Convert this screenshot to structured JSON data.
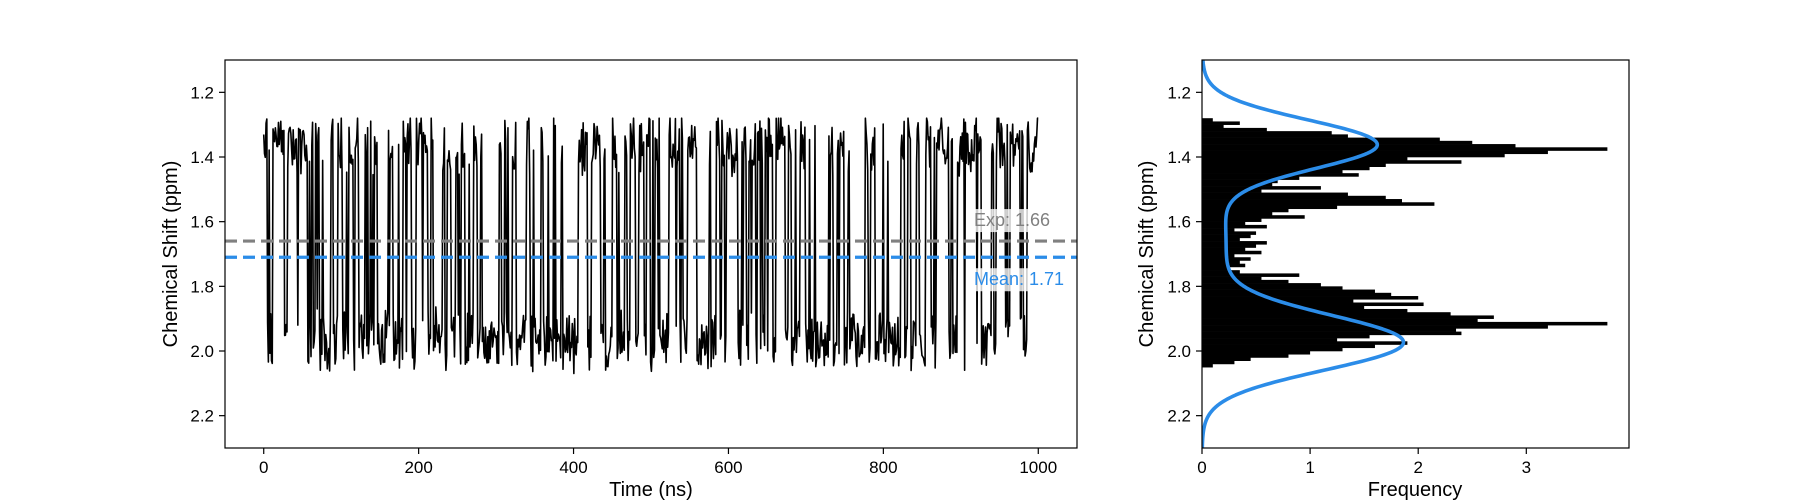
{
  "colors": {
    "trace": "#000000",
    "exp": "#808080",
    "mean": "#2b8ce8",
    "hist": "#000000",
    "kde": "#2b8ce8"
  },
  "chart_data": [
    {
      "type": "line",
      "xlabel": "Time (ns)",
      "ylabel": "Chemical Shift (ppm)",
      "xlim": [
        -50,
        1050
      ],
      "ylim": [
        2.3,
        1.1
      ],
      "y_inverted": true,
      "xticks": [
        0,
        200,
        400,
        600,
        800,
        1000
      ],
      "yticks": [
        1.2,
        1.4,
        1.6,
        1.8,
        2.0,
        2.2
      ],
      "xtick_labels": [
        "0",
        "200",
        "400",
        "600",
        "800",
        "1000"
      ],
      "ytick_labels": [
        "1.2",
        "1.4",
        "1.6",
        "1.8",
        "2.0",
        "2.2"
      ],
      "series": [
        {
          "kind": "two-state trace",
          "n_points": 1000,
          "x_range": [
            0,
            1000
          ],
          "state_upper": 1.36,
          "state_lower": 1.97,
          "min": 1.28,
          "max": 2.14,
          "seed": 7
        }
      ],
      "reference_lines": [
        {
          "label": "Exp: 1.66",
          "value": 1.66,
          "style": "dashed",
          "color": "#808080"
        },
        {
          "label": "Mean: 1.71",
          "value": 1.71,
          "style": "dashed",
          "color": "#2b8ce8"
        }
      ],
      "grid": false
    },
    {
      "type": "bar",
      "orientation": "horizontal",
      "xlabel": "Frequency",
      "ylabel": "Chemical Shift (ppm)",
      "xlim": [
        0,
        3.95
      ],
      "ylim": [
        2.3,
        1.1
      ],
      "y_inverted": true,
      "xticks": [
        0,
        1,
        2,
        3
      ],
      "yticks": [
        1.2,
        1.4,
        1.6,
        1.8,
        2.0,
        2.2
      ],
      "xtick_labels": [
        "0",
        "1",
        "2",
        "3"
      ],
      "ytick_labels": [
        "1.2",
        "1.4",
        "1.6",
        "1.8",
        "2.0",
        "2.2"
      ],
      "bins": {
        "start": 1.28,
        "width": 0.01,
        "values": [
          0.1,
          0.35,
          0.2,
          0.6,
          1.2,
          1.35,
          2.2,
          2.5,
          2.9,
          3.75,
          3.2,
          2.8,
          1.9,
          2.4,
          1.7,
          1.55,
          1.3,
          1.45,
          0.9,
          0.7,
          0.65,
          1.1,
          0.55,
          1.35,
          1.7,
          1.85,
          2.15,
          1.25,
          0.8,
          0.65,
          0.95,
          0.55,
          0.4,
          0.6,
          0.3,
          0.5,
          0.45,
          0.35,
          0.6,
          0.5,
          0.4,
          0.55,
          0.3,
          0.45,
          0.35,
          0.4,
          0.25,
          0.35,
          0.9,
          0.55,
          0.8,
          1.1,
          1.3,
          1.6,
          1.75,
          2.0,
          1.4,
          2.05,
          1.5,
          1.9,
          2.3,
          2.7,
          2.55,
          3.75,
          3.2,
          2.35,
          2.4,
          1.55,
          1.25,
          1.9,
          1.6,
          1.3,
          1.0,
          0.8,
          0.45,
          0.3,
          0.1
        ]
      },
      "kde": {
        "components": [
          {
            "weight": 1.55,
            "mu": 1.36,
            "sigma": 0.075
          },
          {
            "weight": 1.8,
            "mu": 1.975,
            "sigma": 0.085
          },
          {
            "weight": 0.22,
            "mu": 1.66,
            "sigma": 0.2
          }
        ],
        "color": "#2b8ce8"
      },
      "grid": false
    }
  ]
}
